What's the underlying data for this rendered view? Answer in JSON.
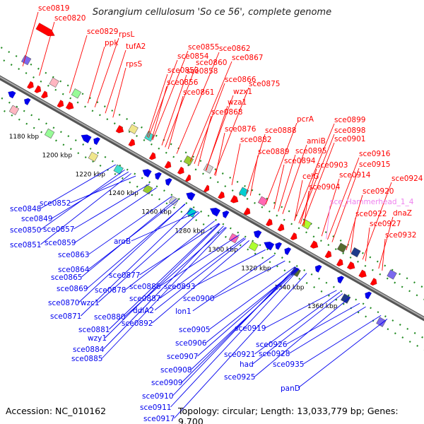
{
  "title": "Sorangium cellulosum 'So ce 56', complete genome",
  "footer": {
    "accession": "Accession: NC_010162",
    "info": "Topology: circular; Length: 13,033,779 bp; Genes: 9,700"
  },
  "colors": {
    "forward": "#ff0000",
    "reverse": "#0000ee",
    "highlight": "#ee82ee",
    "backbone": "#888888",
    "ticks": "#228b22"
  },
  "kbp_ticks": [
    "1180 kbp",
    "1200 kbp",
    "1220 kbp",
    "1240 kbp",
    "1260 kbp",
    "1280 kbp",
    "1300 kbp",
    "1320 kbp",
    "1340 kbp",
    "1360 kbp"
  ],
  "forward_labels": [
    "sce0819",
    "sce0820",
    "sce0829",
    "rpsL",
    "ppk",
    "tufA2",
    "rpsS",
    "sce0855",
    "sce0862",
    "sce0854",
    "sce0867",
    "sce0860",
    "sce0853",
    "sce0858",
    "sce0866",
    "sce0875",
    "sce0856",
    "sce0861",
    "wzx1",
    "wza1",
    "sce0868",
    "sce0876",
    "pcrA",
    "sce0899",
    "sce0888",
    "sce0898",
    "sce0882",
    "amiB",
    "sce0901",
    "sce0889",
    "sce0895",
    "sce0894",
    "sce0903",
    "sce0916",
    "sce0915",
    "celG",
    "sce0914",
    "sce0904",
    "sce0924",
    "sce_Hammerhead_1_4",
    "sce0920",
    "sce0922",
    "dnaZ",
    "sce0927",
    "sce0932"
  ],
  "reverse_labels": [
    "sce0848",
    "sce0852",
    "sce0849",
    "sce0850",
    "sce0857",
    "sce0851",
    "sce0859",
    "sce0863",
    "aroB",
    "sce0864",
    "sce0865",
    "sce0877",
    "sce0869",
    "sce0878",
    "sce0886",
    "sce0893",
    "sce0870",
    "wzc1",
    "sce0887",
    "sce0900",
    "sce0871",
    "sce0880",
    "ddlA2",
    "lon1",
    "sce0892",
    "sce0881",
    "wzy1",
    "sce0905",
    "sce0919",
    "sce0884",
    "sce0906",
    "sce0926",
    "sce0885",
    "sce0907",
    "sce0921",
    "sce0928",
    "had",
    "sce0935",
    "sce0908",
    "sce0925",
    "sce0909",
    "panD",
    "sce0910",
    "sce0911",
    "sce0917"
  ]
}
